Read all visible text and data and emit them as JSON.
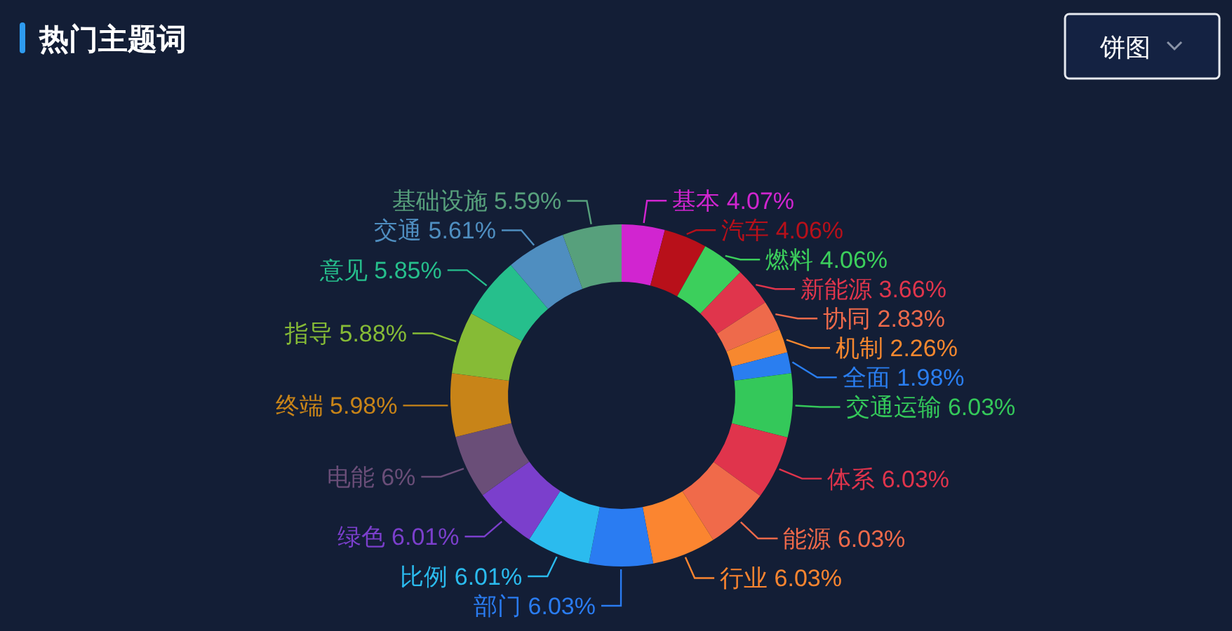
{
  "chart_data": {
    "type": "donut",
    "title": "热门主题词",
    "categories": [
      "基本",
      "汽车",
      "燃料",
      "新能源",
      "协同",
      "机制",
      "全面",
      "交通运输",
      "体系",
      "能源",
      "行业",
      "部门",
      "比例",
      "绿色",
      "电能",
      "终端",
      "指导",
      "意见",
      "交通",
      "基础设施"
    ],
    "values": [
      4.07,
      4.06,
      4.06,
      3.66,
      2.83,
      2.26,
      1.98,
      6.03,
      6.03,
      6.03,
      6.03,
      6.03,
      6.01,
      6.01,
      6,
      5.98,
      5.88,
      5.85,
      5.61,
      5.59
    ],
    "colors": [
      "#d125d0",
      "#b8101a",
      "#3ccf5c",
      "#e0354c",
      "#ee6a4b",
      "#f7882f",
      "#2a7ef0",
      "#34c85a",
      "#e0344c",
      "#f06a4a",
      "#fb8530",
      "#2a7cf2",
      "#2bbbee",
      "#7b3fcc",
      "#6a4e78",
      "#c88418",
      "#86bb36",
      "#26bf8c",
      "#4f8ec0",
      "#57a07c"
    ],
    "value_labels": [
      "4.07%",
      "4.06%",
      "4.06%",
      "3.66%",
      "2.83%",
      "2.26%",
      "1.98%",
      "6.03%",
      "6.03%",
      "6.03%",
      "6.03%",
      "6.03%",
      "6.01%",
      "6.01%",
      "6%",
      "5.98%",
      "5.88%",
      "5.85%",
      "5.61%",
      "5.59%"
    ],
    "annotations": [
      "饼图"
    ]
  }
}
